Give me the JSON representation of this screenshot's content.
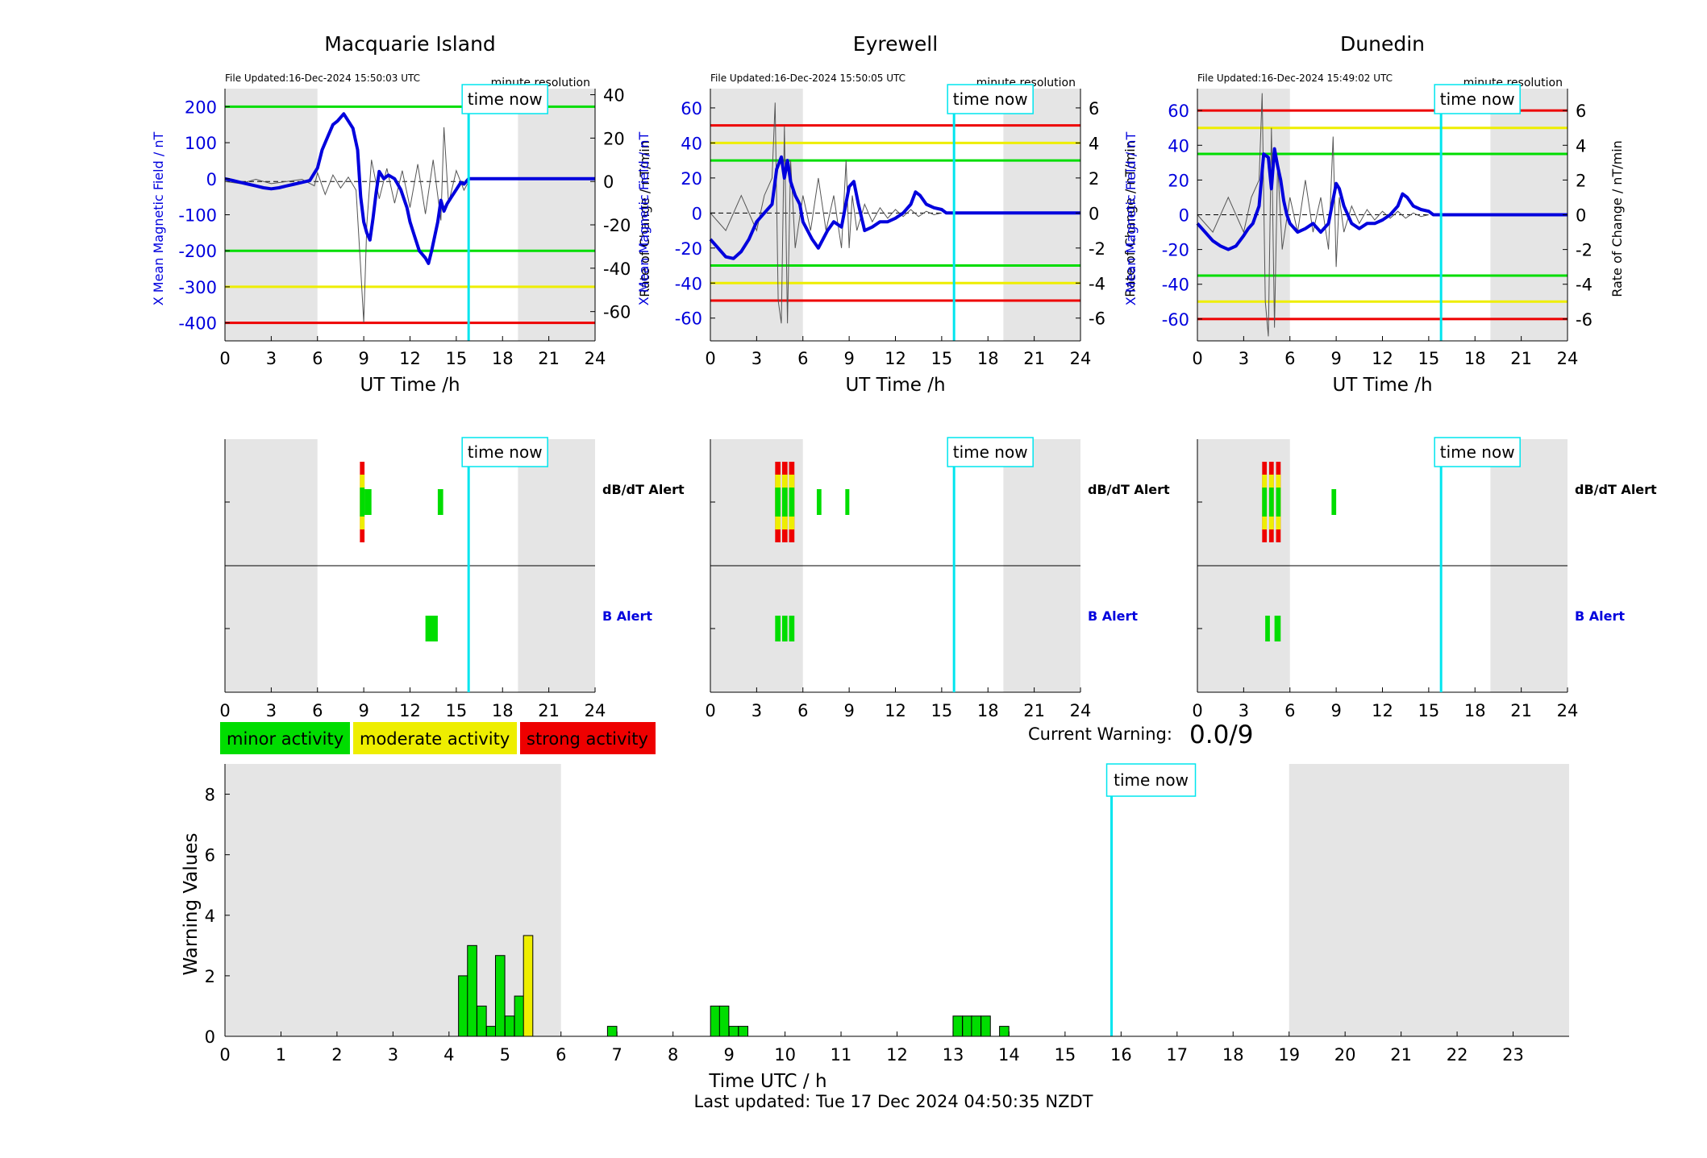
{
  "station_charts": [
    {
      "title": "Macquarie Island",
      "file_updated": "File Updated:16-Dec-2024 15:50:03 UTC",
      "resolution": "minute resolution",
      "xlabel": "UT Time /h",
      "ylabel_left": "X Mean Magnetic Field / nT",
      "ylabel_right": "Rate of Change / nT/min",
      "xlim": [
        0,
        24
      ],
      "x_ticks": [
        "0",
        "3",
        "6",
        "9",
        "12",
        "15",
        "18",
        "21",
        "24"
      ],
      "ylim_left": [
        -450,
        250
      ],
      "left_ticks": [
        200,
        100,
        0,
        -100,
        -200,
        -300,
        -400
      ],
      "left_tick_labels": [
        "200",
        "100",
        "0",
        "-100",
        "-200",
        "-300",
        "-400"
      ],
      "ylim_right": [
        -73.5,
        42.8
      ],
      "right_ticks": [
        40,
        20,
        0,
        -20,
        -40,
        -60
      ],
      "right_tick_labels": [
        "40",
        "20",
        "0",
        "-20",
        "-40",
        "-60"
      ],
      "thresholds": [
        {
          "value": 200,
          "color": "#00dd00"
        },
        {
          "value": -200,
          "color": "#00dd00"
        },
        {
          "value": -300,
          "color": "#eeee00"
        },
        {
          "value": -400,
          "color": "#ee0000"
        }
      ],
      "night_shading": [
        [
          0,
          6
        ],
        [
          19,
          24
        ]
      ],
      "time_now": 15.8,
      "time_now_label": "time now",
      "x_field_series": {
        "x": [
          0,
          0.5,
          1,
          1.5,
          2,
          2.5,
          3,
          3.5,
          4,
          4.5,
          5,
          5.5,
          6,
          6.3,
          6.7,
          7,
          7.3,
          7.7,
          8,
          8.3,
          8.6,
          8.8,
          9,
          9.2,
          9.4,
          9.6,
          9.8,
          10,
          10.3,
          10.6,
          11,
          11.4,
          11.8,
          12,
          12.3,
          12.6,
          13,
          13.2,
          13.4,
          13.6,
          13.8,
          14,
          14.2,
          14.4,
          14.7,
          15,
          15.3,
          15.5,
          15.8,
          24
        ],
        "y": [
          0,
          -5,
          -10,
          -15,
          -20,
          -25,
          -28,
          -25,
          -20,
          -15,
          -10,
          -5,
          30,
          80,
          120,
          150,
          160,
          180,
          160,
          140,
          80,
          -50,
          -120,
          -150,
          -170,
          -110,
          -40,
          20,
          0,
          10,
          0,
          -30,
          -80,
          -120,
          -160,
          -200,
          -220,
          -235,
          -200,
          -160,
          -120,
          -60,
          -90,
          -70,
          -50,
          -30,
          -10,
          -15,
          0,
          0
        ]
      },
      "rate_series": {
        "x": [
          0,
          1,
          2,
          3,
          4,
          5,
          5.8,
          6,
          6.5,
          7,
          7.5,
          8,
          8.5,
          8.8,
          9,
          9.2,
          9.5,
          10,
          10.5,
          11,
          11.5,
          12,
          12.5,
          13,
          13.5,
          14,
          14.2,
          14.5,
          15,
          15.5,
          15.8
        ],
        "y": [
          0,
          -1,
          1,
          -1,
          0,
          1,
          -2,
          4,
          -6,
          3,
          -3,
          2,
          -4,
          -40,
          -65,
          -20,
          10,
          -8,
          6,
          -10,
          5,
          -12,
          8,
          -15,
          10,
          -18,
          25,
          -10,
          5,
          -4,
          0
        ]
      },
      "alerts": {
        "dbdt_label": "dB/dT Alert",
        "b_label": "B Alert",
        "dbdt": [
          {
            "start": 8.75,
            "end": 9.05,
            "level": "strong"
          },
          {
            "start": 9.05,
            "end": 9.5,
            "level": "minor"
          },
          {
            "start": 13.8,
            "end": 14.15,
            "level": "minor"
          }
        ],
        "b": [
          {
            "start": 13.0,
            "end": 13.8,
            "level": "minor"
          }
        ]
      }
    },
    {
      "title": "Eyrewell",
      "file_updated": "File Updated:16-Dec-2024 15:50:05 UTC",
      "resolution": "minute resolution",
      "xlabel": "UT Time /h",
      "ylabel_left": "X Mean Magnetic Field / nT",
      "ylabel_right": "Rate of Change / nT/min",
      "xlim": [
        0,
        24
      ],
      "x_ticks": [
        "0",
        "3",
        "6",
        "9",
        "12",
        "15",
        "18",
        "21",
        "24"
      ],
      "ylim_left": [
        -73,
        71
      ],
      "left_ticks": [
        60,
        40,
        20,
        0,
        -20,
        -40,
        -60
      ],
      "left_tick_labels": [
        "60",
        "40",
        "20",
        "0",
        "-20",
        "-40",
        "-60"
      ],
      "ylim_right": [
        -7.3,
        7.1
      ],
      "right_ticks": [
        6,
        4,
        2,
        0,
        -2,
        -4,
        -6
      ],
      "right_tick_labels": [
        "6",
        "4",
        "2",
        "0",
        "-2",
        "-4",
        "-6"
      ],
      "thresholds": [
        {
          "value": 50,
          "color": "#ee0000"
        },
        {
          "value": 40,
          "color": "#eeee00"
        },
        {
          "value": 30,
          "color": "#00dd00"
        },
        {
          "value": -30,
          "color": "#00dd00"
        },
        {
          "value": -40,
          "color": "#eeee00"
        },
        {
          "value": -50,
          "color": "#ee0000"
        }
      ],
      "night_shading": [
        [
          0,
          6
        ],
        [
          19,
          24
        ]
      ],
      "time_now": 15.8,
      "time_now_label": "time now",
      "x_field_series": {
        "x": [
          0,
          0.5,
          1,
          1.5,
          2,
          2.5,
          3,
          3.5,
          4,
          4.3,
          4.6,
          4.8,
          5,
          5.2,
          5.5,
          5.8,
          6,
          6.3,
          6.6,
          7,
          7.3,
          7.6,
          8,
          8.5,
          9,
          9.3,
          9.6,
          10,
          10.5,
          11,
          11.5,
          12,
          12.5,
          13,
          13.3,
          13.6,
          14,
          14.5,
          15,
          15.3,
          15.8,
          24
        ],
        "y": [
          -15,
          -20,
          -25,
          -26,
          -22,
          -15,
          -5,
          0,
          5,
          25,
          32,
          20,
          30,
          18,
          10,
          5,
          -5,
          -10,
          -15,
          -20,
          -15,
          -10,
          -5,
          -8,
          15,
          18,
          5,
          -10,
          -8,
          -5,
          -5,
          -3,
          0,
          5,
          12,
          10,
          5,
          3,
          2,
          0,
          0,
          0
        ]
      },
      "rate_series": {
        "x": [
          0,
          1,
          2,
          3,
          3.5,
          4,
          4.2,
          4.4,
          4.6,
          4.8,
          5,
          5.2,
          5.5,
          6,
          6.5,
          7,
          7.5,
          8,
          8.5,
          8.8,
          9,
          9.2,
          9.5,
          10,
          10.5,
          11,
          11.5,
          12,
          12.5,
          13,
          13.5,
          14,
          14.5,
          15
        ],
        "y": [
          0,
          -1,
          1,
          -1,
          1,
          2,
          6.3,
          -5,
          -6.3,
          5,
          -6.3,
          3,
          -2,
          1,
          -1,
          2,
          -1,
          1,
          -2,
          3,
          -2,
          1,
          -1,
          0.5,
          -0.5,
          0.3,
          -0.3,
          0.2,
          -0.2,
          0.2,
          -0.2,
          0.1,
          -0.1,
          0
        ]
      },
      "alerts": {
        "dbdt_label": "dB/dT Alert",
        "b_label": "B Alert",
        "dbdt": [
          {
            "start": 4.2,
            "end": 4.55,
            "level": "strong"
          },
          {
            "start": 4.65,
            "end": 5.0,
            "level": "strong"
          },
          {
            "start": 5.1,
            "end": 5.45,
            "level": "strong"
          },
          {
            "start": 6.9,
            "end": 7.2,
            "level": "minor"
          },
          {
            "start": 8.75,
            "end": 9.0,
            "level": "minor"
          }
        ],
        "b": [
          {
            "start": 4.2,
            "end": 4.55,
            "level": "minor"
          },
          {
            "start": 4.65,
            "end": 5.0,
            "level": "minor"
          },
          {
            "start": 5.1,
            "end": 5.45,
            "level": "minor"
          }
        ]
      }
    },
    {
      "title": "Dunedin",
      "file_updated": "File Updated:16-Dec-2024 15:49:02 UTC",
      "resolution": "minute resolution",
      "xlabel": "UT Time /h",
      "ylabel_left": "X Mean Magnetic Field / nT",
      "ylabel_right": "Rate of Change / nT/min",
      "xlim": [
        0,
        24
      ],
      "x_ticks": [
        "0",
        "3",
        "6",
        "9",
        "12",
        "15",
        "18",
        "21",
        "24"
      ],
      "ylim_left": [
        -72.6,
        72.6
      ],
      "left_ticks": [
        60,
        40,
        20,
        0,
        -20,
        -40,
        -60
      ],
      "left_tick_labels": [
        "60",
        "40",
        "20",
        "0",
        "-20",
        "-40",
        "-60"
      ],
      "ylim_right": [
        -7.26,
        7.26
      ],
      "right_ticks": [
        6,
        4,
        2,
        0,
        -2,
        -4,
        -6
      ],
      "right_tick_labels": [
        "6",
        "4",
        "2",
        "0",
        "-2",
        "-4",
        "-6"
      ],
      "thresholds": [
        {
          "value": 60,
          "color": "#ee0000"
        },
        {
          "value": 50,
          "color": "#eeee00"
        },
        {
          "value": 35,
          "color": "#00dd00"
        },
        {
          "value": -35,
          "color": "#00dd00"
        },
        {
          "value": -50,
          "color": "#eeee00"
        },
        {
          "value": -60,
          "color": "#ee0000"
        }
      ],
      "night_shading": [
        [
          0,
          6
        ],
        [
          19,
          24
        ]
      ],
      "time_now": 15.8,
      "time_now_label": "time now",
      "x_field_series": {
        "x": [
          0,
          0.5,
          1,
          1.5,
          2,
          2.5,
          3,
          3.3,
          3.6,
          4,
          4.3,
          4.6,
          4.8,
          5,
          5.2,
          5.4,
          5.6,
          5.8,
          6,
          6.5,
          7,
          7.5,
          8,
          8.5,
          9,
          9.2,
          9.5,
          10,
          10.5,
          11,
          11.5,
          12,
          12.5,
          13,
          13.3,
          13.6,
          14,
          14.5,
          15,
          15.3,
          15.8,
          24
        ],
        "y": [
          -5,
          -10,
          -15,
          -18,
          -20,
          -18,
          -12,
          -8,
          -5,
          5,
          35,
          33,
          15,
          38,
          28,
          20,
          8,
          0,
          -5,
          -10,
          -8,
          -5,
          -10,
          -5,
          18,
          15,
          5,
          -5,
          -8,
          -5,
          -5,
          -3,
          0,
          5,
          12,
          10,
          5,
          3,
          2,
          0,
          0,
          0
        ]
      },
      "rate_series": {
        "x": [
          0,
          1,
          2,
          3,
          3.5,
          4,
          4.2,
          4.4,
          4.6,
          4.8,
          5,
          5.2,
          5.5,
          6,
          6.5,
          7,
          7.5,
          8,
          8.5,
          8.8,
          9,
          9.2,
          9.5,
          10,
          10.5,
          11,
          11.5,
          12,
          12.5,
          13,
          13.5,
          14,
          14.5,
          15
        ],
        "y": [
          0,
          -1,
          1,
          -1,
          1,
          2,
          7,
          -5,
          -7,
          5,
          -6.5,
          3,
          -2,
          1,
          -1,
          2,
          -1,
          1,
          -2,
          4.5,
          -3,
          1,
          -1,
          0.5,
          -0.5,
          0.3,
          -0.3,
          0.2,
          -0.2,
          0.2,
          -0.2,
          0.1,
          -0.1,
          0
        ]
      },
      "alerts": {
        "dbdt_label": "dB/dT Alert",
        "b_label": "B Alert",
        "dbdt": [
          {
            "start": 4.2,
            "end": 4.5,
            "level": "strong"
          },
          {
            "start": 4.65,
            "end": 4.95,
            "level": "strong"
          },
          {
            "start": 5.1,
            "end": 5.4,
            "level": "strong"
          },
          {
            "start": 8.7,
            "end": 9.0,
            "level": "minor"
          }
        ],
        "b": [
          {
            "start": 4.4,
            "end": 4.7,
            "level": "minor"
          },
          {
            "start": 5.0,
            "end": 5.4,
            "level": "minor"
          }
        ]
      }
    }
  ],
  "alert_x_ticks": [
    "0",
    "3",
    "6",
    "9",
    "12",
    "15",
    "18",
    "21",
    "24"
  ],
  "legend": [
    {
      "label": "minor activity",
      "color": "#00dd00"
    },
    {
      "label": "moderate activity",
      "color": "#eeee00"
    },
    {
      "label": "strong activity",
      "color": "#ee0000"
    }
  ],
  "level_colors": {
    "minor": "#00dd00",
    "moderate": "#eeee00",
    "strong": "#ee0000"
  },
  "current_warning": {
    "label": "Current Warning:",
    "value": "0.0/9"
  },
  "chart_data": {
    "type": "bar",
    "xlabel": "Time UTC / h",
    "ylabel": "Warning Values",
    "xlim": [
      0,
      24
    ],
    "ylim": [
      0,
      9
    ],
    "x_ticks": [
      "0",
      "1",
      "2",
      "3",
      "4",
      "5",
      "6",
      "7",
      "8",
      "9",
      "10",
      "11",
      "12",
      "13",
      "14",
      "15",
      "16",
      "17",
      "18",
      "19",
      "20",
      "21",
      "22",
      "23"
    ],
    "y_ticks": [
      "0",
      "2",
      "4",
      "6",
      "8"
    ],
    "night_shading": [
      [
        0,
        6
      ],
      [
        19,
        24
      ]
    ],
    "time_now": 15.83,
    "time_now_label": "time now",
    "bar_width_h": 0.1667,
    "bars": [
      {
        "x": 4.17,
        "value": 2.0,
        "level": "minor"
      },
      {
        "x": 4.33,
        "value": 3.0,
        "level": "minor"
      },
      {
        "x": 4.5,
        "value": 1.0,
        "level": "minor"
      },
      {
        "x": 4.67,
        "value": 0.33,
        "level": "minor"
      },
      {
        "x": 4.83,
        "value": 2.67,
        "level": "minor"
      },
      {
        "x": 5.0,
        "value": 0.67,
        "level": "minor"
      },
      {
        "x": 5.17,
        "value": 1.33,
        "level": "minor"
      },
      {
        "x": 5.33,
        "value": 3.33,
        "level": "moderate"
      },
      {
        "x": 6.83,
        "value": 0.33,
        "level": "minor"
      },
      {
        "x": 8.67,
        "value": 1.0,
        "level": "minor"
      },
      {
        "x": 8.83,
        "value": 1.0,
        "level": "minor"
      },
      {
        "x": 9.0,
        "value": 0.33,
        "level": "minor"
      },
      {
        "x": 9.17,
        "value": 0.33,
        "level": "minor"
      },
      {
        "x": 13.0,
        "value": 0.67,
        "level": "minor"
      },
      {
        "x": 13.17,
        "value": 0.67,
        "level": "minor"
      },
      {
        "x": 13.33,
        "value": 0.67,
        "level": "minor"
      },
      {
        "x": 13.5,
        "value": 0.67,
        "level": "minor"
      },
      {
        "x": 13.83,
        "value": 0.33,
        "level": "minor"
      }
    ]
  },
  "footer": {
    "last_updated": "Last updated: Tue 17 Dec 2024 04:50:35 NZDT"
  }
}
